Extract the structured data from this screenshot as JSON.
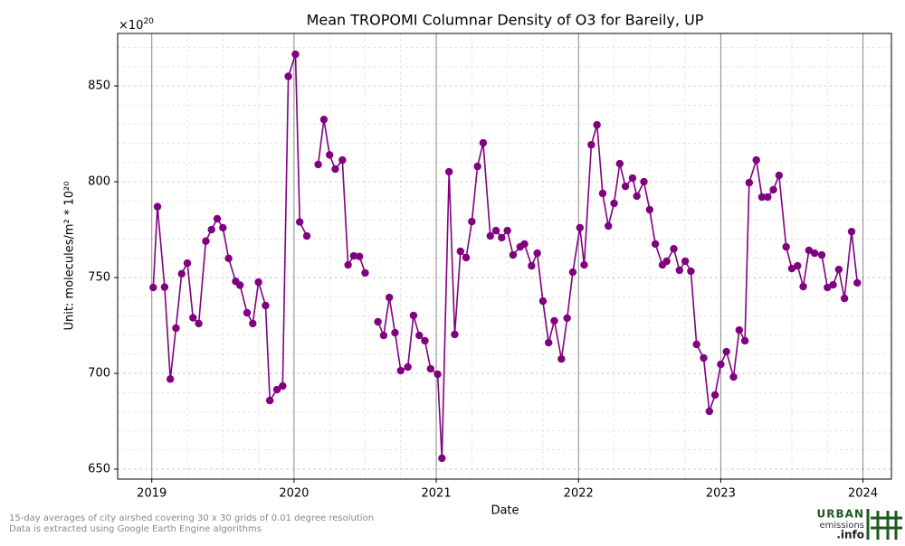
{
  "chart_data": {
    "type": "line",
    "title": "Mean TROPOMI Columnar Density of O3 for Bareily, UP",
    "xlabel": "Date",
    "ylabel": "Unit: molecules/m² * 10²⁰",
    "y_offset_text": {
      "base": "×10",
      "exponent": "20"
    },
    "color": "#800080",
    "x": [
      2019.01,
      2019.04,
      2019.09,
      2019.13,
      2019.17,
      2019.21,
      2019.25,
      2019.29,
      2019.33,
      2019.38,
      2019.42,
      2019.46,
      2019.5,
      2019.54,
      2019.59,
      2019.62,
      2019.67,
      2019.71,
      2019.75,
      2019.8,
      2019.83,
      2019.88,
      2019.92,
      2019.96,
      2020.01,
      2020.04,
      2020.09,
      2020.13,
      2020.17,
      2020.21,
      2020.25,
      2020.29,
      2020.34,
      2020.38,
      2020.42,
      2020.46,
      2020.5,
      2020.54,
      2020.59,
      2020.63,
      2020.67,
      2020.71,
      2020.75,
      2020.8,
      2020.84,
      2020.88,
      2020.92,
      2020.96,
      2021.01,
      2021.04,
      2021.09,
      2021.13,
      2021.17,
      2021.21,
      2021.25,
      2021.29,
      2021.33,
      2021.38,
      2021.42,
      2021.46,
      2021.5,
      2021.54,
      2021.59,
      2021.62,
      2021.67,
      2021.71,
      2021.75,
      2021.79,
      2021.83,
      2021.88,
      2021.92,
      2021.96,
      2022.01,
      2022.04,
      2022.09,
      2022.13,
      2022.17,
      2022.21,
      2022.25,
      2022.29,
      2022.33,
      2022.38,
      2022.41,
      2022.46,
      2022.5,
      2022.54,
      2022.59,
      2022.62,
      2022.67,
      2022.71,
      2022.75,
      2022.79,
      2022.83,
      2022.88,
      2022.92,
      2022.96,
      2023.0,
      2023.04,
      2023.09,
      2023.13,
      2023.17,
      2023.2,
      2023.25,
      2023.29,
      2023.33,
      2023.37,
      2023.41,
      2023.46,
      2023.5,
      2023.54,
      2023.58,
      2023.62,
      2023.66,
      2023.71,
      2023.75,
      2023.79,
      2023.83,
      2023.87,
      2023.92,
      2023.96
    ],
    "values": [
      744.8,
      787,
      745,
      697,
      723.6,
      752,
      757.5,
      729,
      726,
      769,
      775,
      780.7,
      776,
      760,
      748,
      746,
      731.6,
      726,
      747.6,
      735.4,
      685.8,
      691.5,
      693.4,
      855,
      866.5,
      779,
      771.7,
      null,
      809,
      832.5,
      814,
      806.6,
      811.3,
      756.6,
      761.3,
      761,
      752.4,
      null,
      726.9,
      719.8,
      739.6,
      721.2,
      701.4,
      703.3,
      730.2,
      719.8,
      717,
      702.4,
      699.5,
      655.7,
      805.2,
      720.3,
      763.7,
      760.4,
      779.2,
      808,
      820.3,
      771.7,
      774.5,
      770.8,
      774.5,
      761.8,
      766,
      767.5,
      756.1,
      762.7,
      737.7,
      716,
      727.4,
      707.5,
      728.8,
      752.8,
      776,
      756.6,
      819.3,
      829.7,
      793.9,
      776.9,
      788.7,
      809.4,
      797.6,
      801.9,
      792.5,
      800,
      785.4,
      767.5,
      756.6,
      758.5,
      765,
      753.8,
      758.5,
      753.3,
      715.1,
      708,
      680.2,
      688.7,
      704.7,
      711.3,
      698.1,
      722.6,
      717,
      799.5,
      811.3,
      792,
      792,
      795.8,
      803.3,
      766,
      754.7,
      756.1,
      745.3,
      764.2,
      762.7,
      761.8,
      744.8,
      746.2,
      754.2,
      739.1,
      774,
      747.2
    ],
    "xlim": [
      2018.76,
      2024.2
    ],
    "ylim": [
      644.8,
      877.4
    ],
    "xticks": [
      2019,
      2020,
      2021,
      2022,
      2023,
      2024
    ],
    "yticks": [
      650,
      700,
      750,
      800,
      850
    ],
    "xminorticks": [
      2019.25,
      2019.5,
      2019.75,
      2020.25,
      2020.5,
      2020.75,
      2021.25,
      2021.5,
      2021.75,
      2022.25,
      2022.5,
      2022.75,
      2023.25,
      2023.5,
      2023.75
    ],
    "yminorticks": [
      660,
      670,
      680,
      690,
      710,
      720,
      730,
      740,
      760,
      770,
      780,
      790,
      810,
      820,
      830,
      840,
      860,
      870
    ],
    "grid": true
  },
  "footer": {
    "notes": [
      "15-day averages of city airshed covering 30 x 30 grids of 0.01 degree resolution",
      "Data is extracted using Google Earth Engine algorithms"
    ],
    "logo": {
      "line1": "URBAN",
      "line2": "emissions",
      "line3": ".info"
    }
  }
}
